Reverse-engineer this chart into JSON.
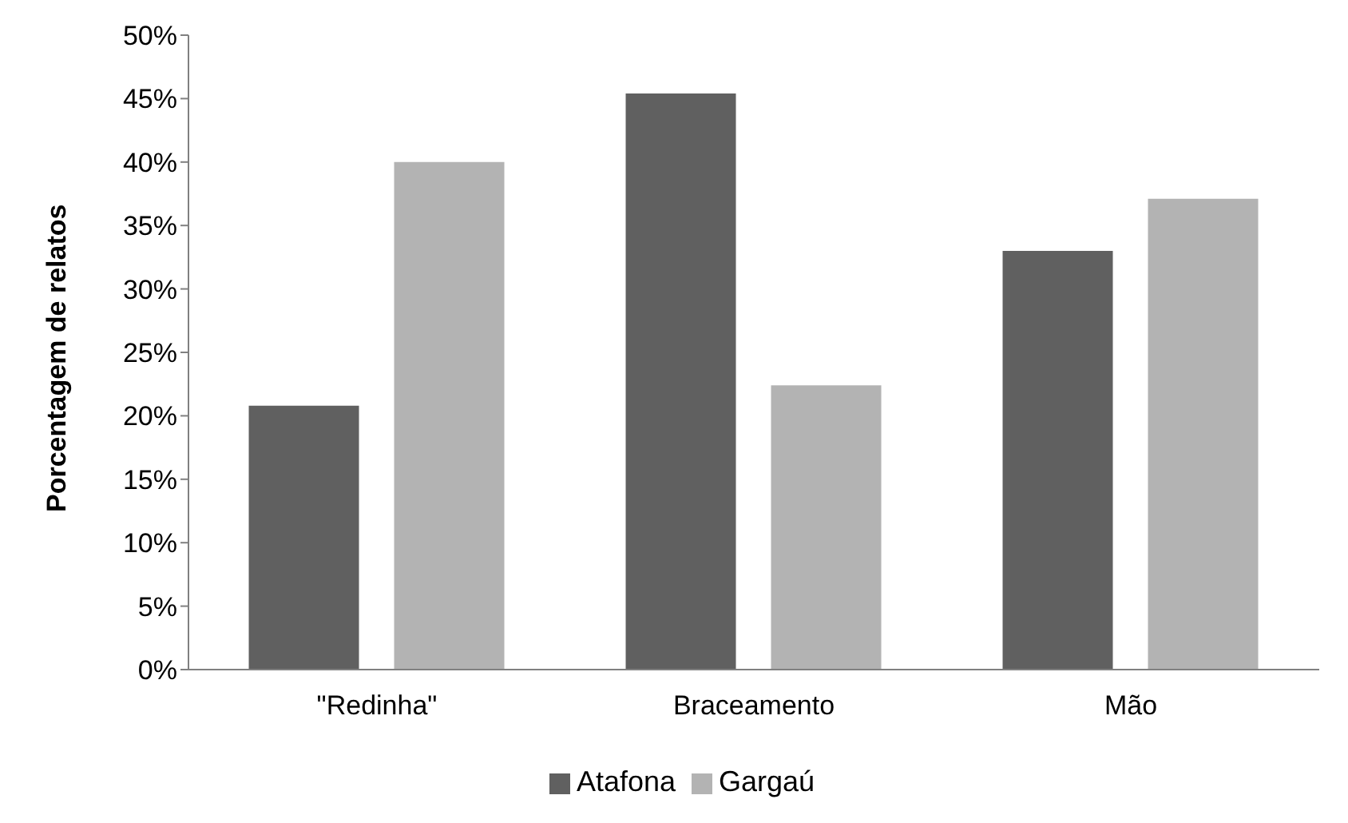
{
  "chart_data": {
    "type": "bar",
    "ylabel": "Porcentagem de relatos",
    "categories": [
      "\"Redinha\"",
      "Braceamento",
      "Mão"
    ],
    "series": [
      {
        "name": "Atafona",
        "color": "#606060",
        "values": [
          20.8,
          45.4,
          33.0
        ]
      },
      {
        "name": "Gargaú",
        "color": "#b3b3b3",
        "values": [
          40.0,
          22.4,
          37.1
        ]
      }
    ],
    "ylim": [
      0,
      50
    ],
    "yticks": [
      {
        "value": 0,
        "label": "0%"
      },
      {
        "value": 5,
        "label": "5%"
      },
      {
        "value": 10,
        "label": "10%"
      },
      {
        "value": 15,
        "label": "15%"
      },
      {
        "value": 20,
        "label": "20%"
      },
      {
        "value": 25,
        "label": "25%"
      },
      {
        "value": 30,
        "label": "30%"
      },
      {
        "value": 35,
        "label": "35%"
      },
      {
        "value": 40,
        "label": "40%"
      },
      {
        "value": 45,
        "label": "45%"
      },
      {
        "value": 50,
        "label": "50%"
      }
    ],
    "grid": false,
    "legend": "bottom"
  }
}
